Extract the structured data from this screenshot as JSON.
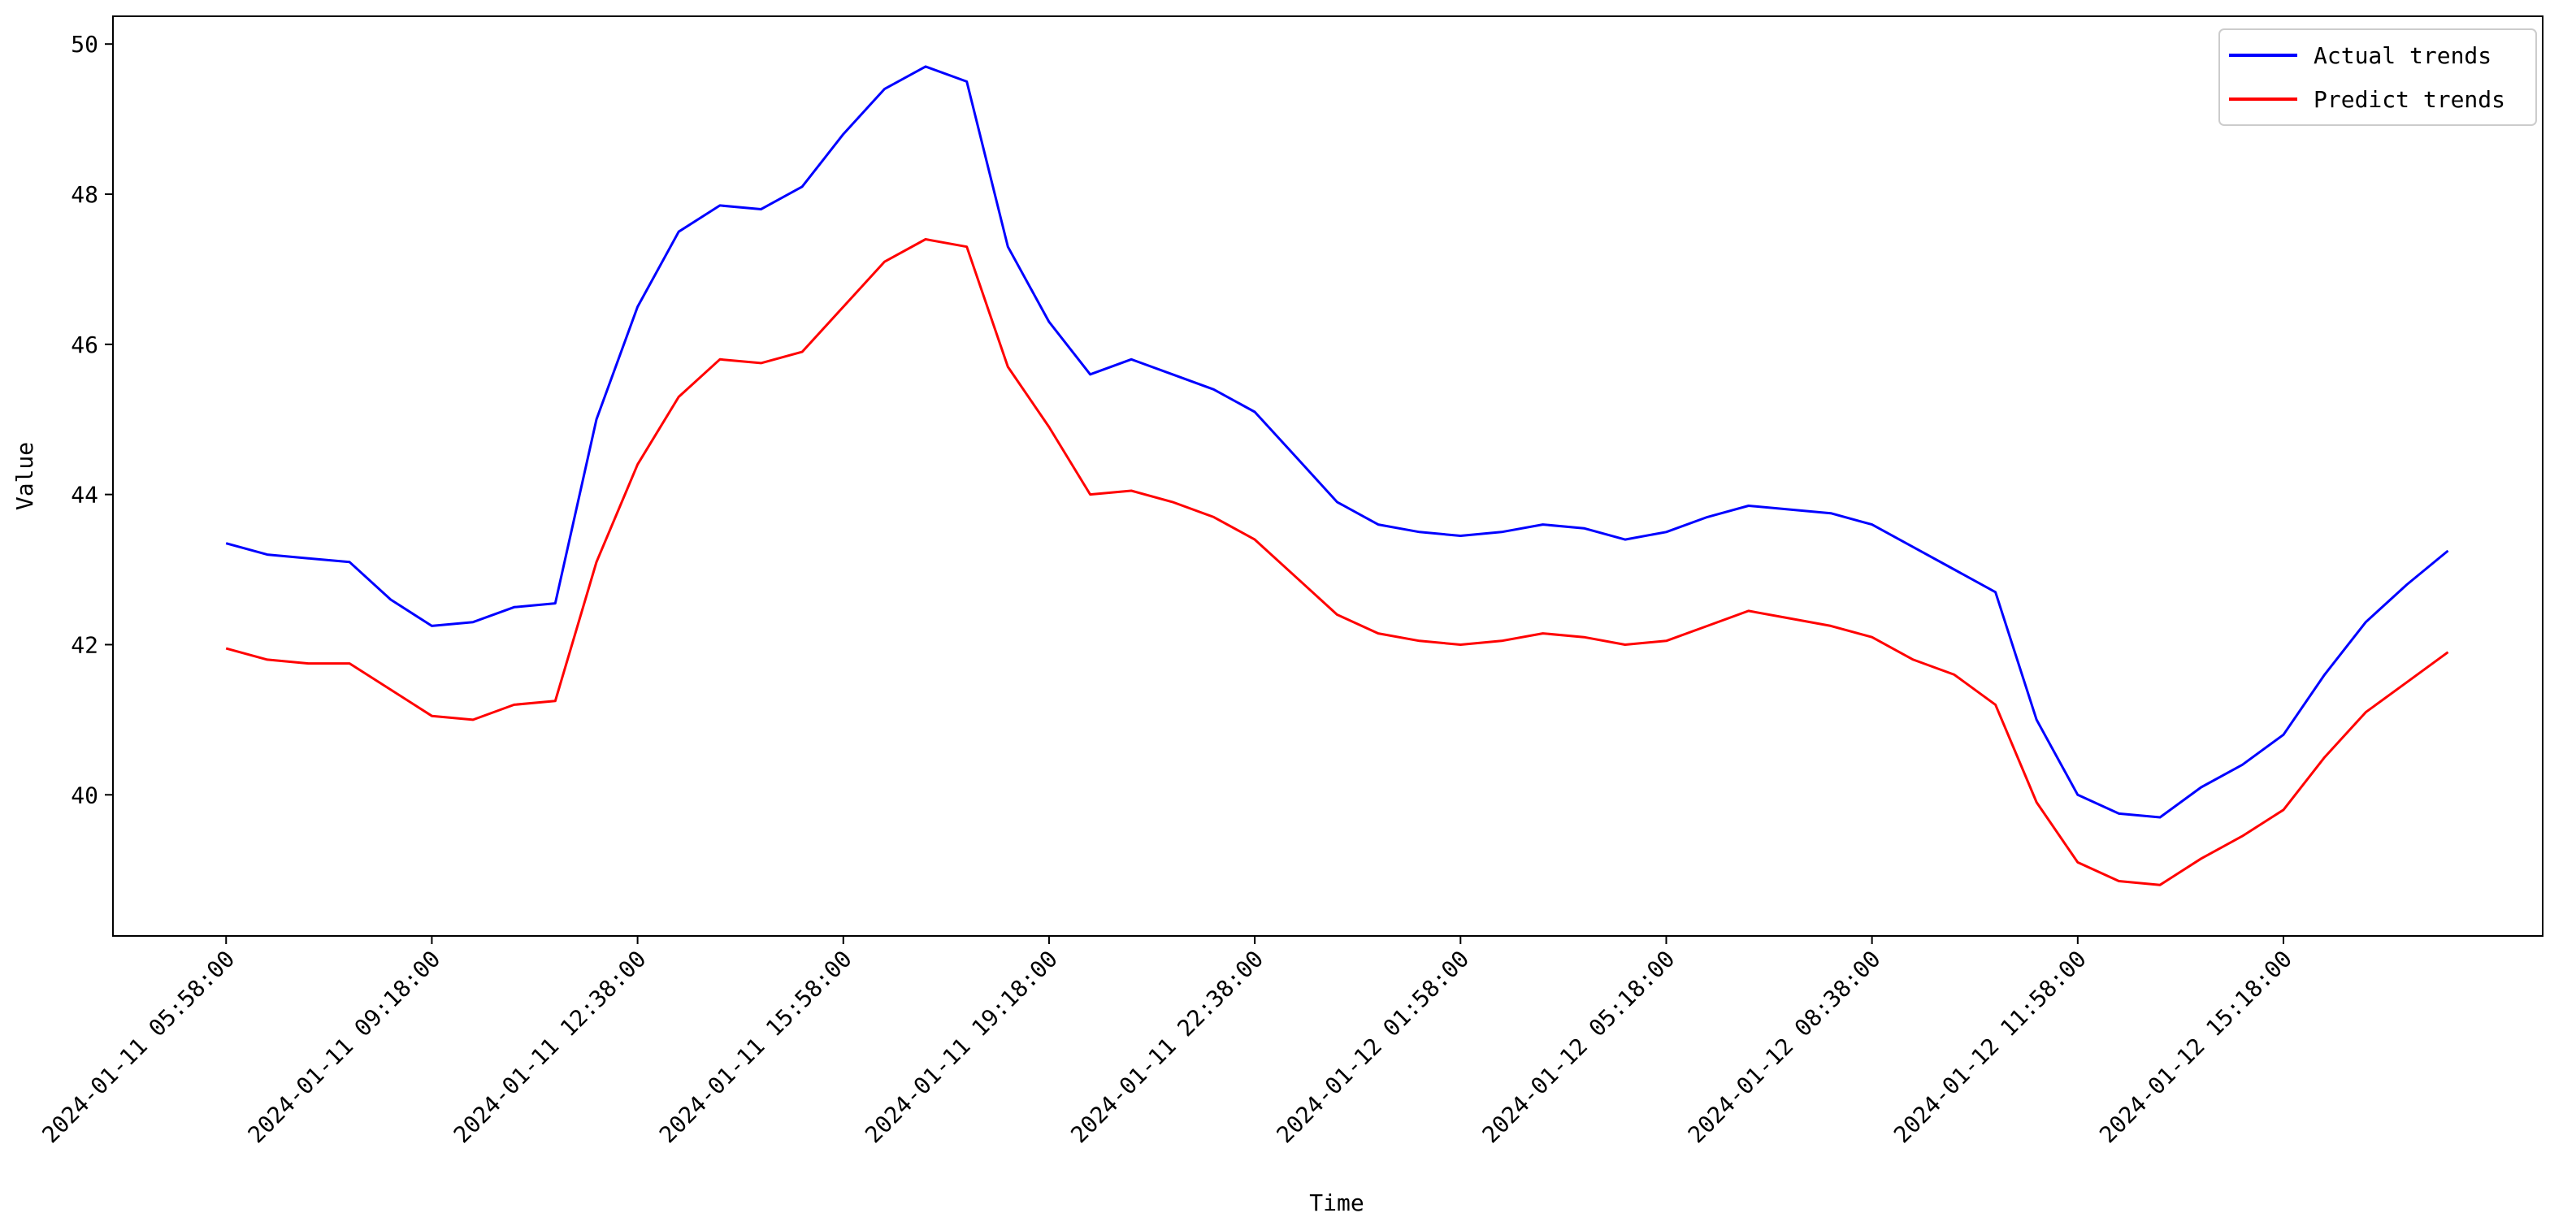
{
  "chart_data": {
    "type": "line",
    "xlabel": "Time",
    "ylabel": "Value",
    "x": [
      "2024-01-11 05:58:00",
      "2024-01-11 06:38:00",
      "2024-01-11 07:18:00",
      "2024-01-11 07:58:00",
      "2024-01-11 08:38:00",
      "2024-01-11 09:18:00",
      "2024-01-11 09:58:00",
      "2024-01-11 10:38:00",
      "2024-01-11 11:18:00",
      "2024-01-11 11:58:00",
      "2024-01-11 12:38:00",
      "2024-01-11 13:18:00",
      "2024-01-11 13:58:00",
      "2024-01-11 14:38:00",
      "2024-01-11 15:18:00",
      "2024-01-11 15:58:00",
      "2024-01-11 16:38:00",
      "2024-01-11 17:18:00",
      "2024-01-11 17:58:00",
      "2024-01-11 18:38:00",
      "2024-01-11 19:18:00",
      "2024-01-11 19:58:00",
      "2024-01-11 20:38:00",
      "2024-01-11 21:18:00",
      "2024-01-11 21:58:00",
      "2024-01-11 22:38:00",
      "2024-01-11 23:18:00",
      "2024-01-11 23:58:00",
      "2024-01-12 00:38:00",
      "2024-01-12 01:18:00",
      "2024-01-12 01:58:00",
      "2024-01-12 02:38:00",
      "2024-01-12 03:18:00",
      "2024-01-12 03:58:00",
      "2024-01-12 04:38:00",
      "2024-01-12 05:18:00",
      "2024-01-12 05:58:00",
      "2024-01-12 06:38:00",
      "2024-01-12 07:18:00",
      "2024-01-12 07:58:00",
      "2024-01-12 08:38:00",
      "2024-01-12 09:18:00",
      "2024-01-12 09:58:00",
      "2024-01-12 10:38:00",
      "2024-01-12 11:18:00",
      "2024-01-12 11:58:00",
      "2024-01-12 12:38:00",
      "2024-01-12 13:18:00",
      "2024-01-12 13:58:00",
      "2024-01-12 14:38:00",
      "2024-01-12 15:18:00",
      "2024-01-12 15:58:00",
      "2024-01-12 16:38:00",
      "2024-01-12 17:18:00",
      "2024-01-12 17:58:00"
    ],
    "series": [
      {
        "name": "Actual trends",
        "color": "#0000ff",
        "values": [
          43.35,
          43.2,
          43.15,
          43.1,
          42.6,
          42.25,
          42.3,
          42.5,
          42.55,
          45.0,
          46.5,
          47.5,
          47.85,
          47.8,
          48.1,
          48.8,
          49.4,
          49.7,
          49.5,
          47.3,
          46.3,
          45.6,
          45.8,
          45.6,
          45.4,
          45.1,
          44.5,
          43.9,
          43.6,
          43.5,
          43.45,
          43.5,
          43.6,
          43.55,
          43.4,
          43.5,
          43.7,
          43.85,
          43.8,
          43.75,
          43.6,
          43.3,
          43.0,
          42.7,
          41.0,
          40.0,
          39.75,
          39.7,
          40.1,
          40.4,
          40.8,
          41.6,
          42.3,
          42.8,
          43.25
        ]
      },
      {
        "name": "Predict trends",
        "color": "#ff0000",
        "values": [
          41.95,
          41.8,
          41.75,
          41.75,
          41.4,
          41.05,
          41.0,
          41.2,
          41.25,
          43.1,
          44.4,
          45.3,
          45.8,
          45.75,
          45.9,
          46.5,
          47.1,
          47.4,
          47.3,
          45.7,
          44.9,
          44.0,
          44.05,
          43.9,
          43.7,
          43.4,
          42.9,
          42.4,
          42.15,
          42.05,
          42.0,
          42.05,
          42.15,
          42.1,
          42.0,
          42.05,
          42.25,
          42.45,
          42.35,
          42.25,
          42.1,
          41.8,
          41.6,
          41.2,
          39.9,
          39.1,
          38.85,
          38.8,
          39.15,
          39.45,
          39.8,
          40.5,
          41.1,
          41.5,
          41.9
        ]
      }
    ],
    "xlim": [
      "2024-01-11 04:08:00",
      "2024-01-12 19:30:00"
    ],
    "xticks": [
      "2024-01-11 05:58:00",
      "2024-01-11 09:18:00",
      "2024-01-11 12:38:00",
      "2024-01-11 15:58:00",
      "2024-01-11 19:18:00",
      "2024-01-11 22:38:00",
      "2024-01-12 01:58:00",
      "2024-01-12 05:18:00",
      "2024-01-12 08:38:00",
      "2024-01-12 11:58:00",
      "2024-01-12 15:18:00"
    ],
    "ylim": [
      38.12,
      50.37
    ],
    "yticks": [
      40,
      42,
      44,
      46,
      48,
      50
    ],
    "grid": false,
    "legend": "upper right"
  }
}
